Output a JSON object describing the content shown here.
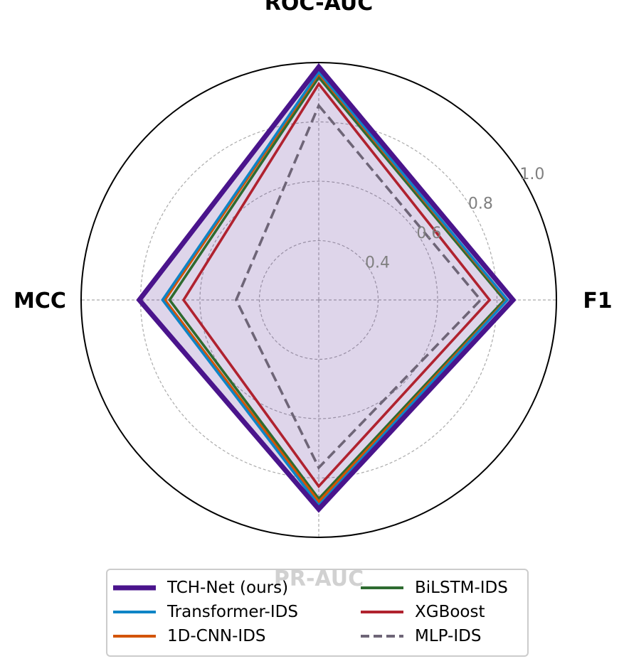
{
  "chart_data": {
    "type": "radar",
    "title": "",
    "axes": [
      "ROC-AUC",
      "F1",
      "PR-AUC",
      "MCC"
    ],
    "rlim": [
      0.2,
      1.0
    ],
    "rticks": [
      0.4,
      0.6,
      0.8,
      1.0
    ],
    "rtick_labels": [
      "0.4",
      "0.6",
      "0.8",
      "1.0"
    ],
    "grid": true,
    "legend_position": "bottom-center",
    "series": [
      {
        "name": "TCH-Net (ours)",
        "values": [
          0.985,
          0.854,
          0.905,
          0.804
        ],
        "color": "#4a148c",
        "style": "solid",
        "fill": true
      },
      {
        "name": "Transformer-IDS",
        "values": [
          0.968,
          0.835,
          0.892,
          0.726
        ],
        "color": "#0e84c6",
        "style": "solid",
        "fill": false
      },
      {
        "name": "1D-CNN-IDS",
        "values": [
          0.962,
          0.832,
          0.88,
          0.718
        ],
        "color": "#d35400",
        "style": "solid",
        "fill": false
      },
      {
        "name": "BiLSTM-IDS",
        "values": [
          0.95,
          0.825,
          0.87,
          0.702
        ],
        "color": "#2e6b30",
        "style": "solid",
        "fill": false
      },
      {
        "name": "XGBoost",
        "values": [
          0.928,
          0.775,
          0.828,
          0.655
        ],
        "color": "#b0222f",
        "style": "solid",
        "fill": false
      },
      {
        "name": "MLP-IDS",
        "values": [
          0.855,
          0.745,
          0.765,
          0.478
        ],
        "color": "#6e6577",
        "style": "dashed",
        "fill": false
      }
    ]
  }
}
